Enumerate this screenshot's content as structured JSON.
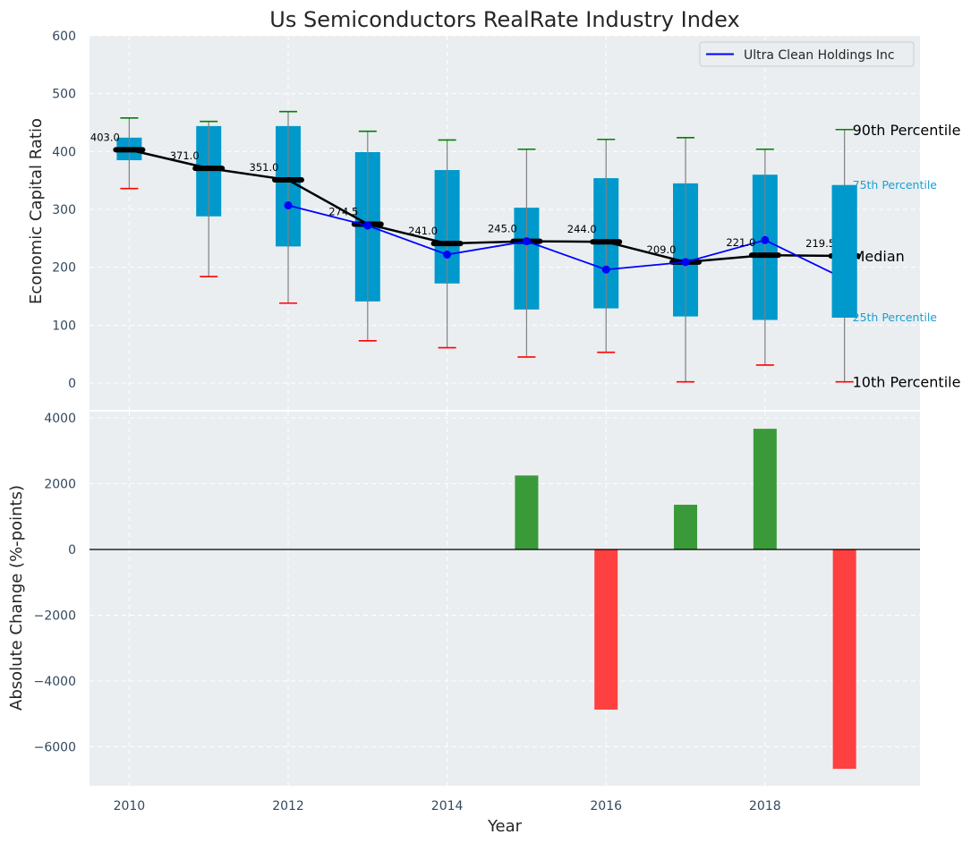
{
  "chart_data": [
    {
      "type": "box",
      "title": "Us Semiconductors RealRate Industry Index",
      "xlabel": "",
      "ylabel": "Economic Capital Ratio",
      "ylim": [
        -50,
        600
      ],
      "yticks": [
        0,
        100,
        200,
        300,
        400,
        500,
        600
      ],
      "grid": true,
      "x": [
        2010,
        2011,
        2012,
        2013,
        2014,
        2015,
        2016,
        2017,
        2018,
        2019
      ],
      "p10": [
        336,
        184,
        138,
        73,
        61,
        45,
        53,
        2,
        31,
        2
      ],
      "p25": [
        385,
        288,
        236,
        141,
        172,
        127,
        129,
        115,
        109,
        113
      ],
      "median": [
        403.0,
        371.0,
        351.0,
        274.5,
        241.0,
        245.0,
        244.0,
        209.0,
        221.0,
        219.5
      ],
      "median_labels": [
        "403.0",
        "371.0",
        "351.0",
        "274.5",
        "241.0",
        "245.0",
        "244.0",
        "209.0",
        "221.0",
        "219.5"
      ],
      "p75": [
        424,
        444,
        444,
        399,
        368,
        303,
        354,
        345,
        360,
        342
      ],
      "p90": [
        458,
        452,
        469,
        435,
        420,
        404,
        421,
        424,
        404,
        438
      ],
      "series": [
        {
          "name": "Ultra Clean Holdings Inc",
          "color": "#0000ff",
          "x": [
            2012,
            2013,
            2014,
            2015,
            2016,
            2017,
            2018,
            2019
          ],
          "values": [
            307,
            272,
            222,
            245,
            196,
            209,
            247,
            180
          ]
        }
      ],
      "legend": {
        "entries": [
          "Ultra Clean Holdings Inc"
        ],
        "placement": "top-right"
      },
      "annotations": {
        "p90": "90th Percentile",
        "p75": "75th Percentile",
        "median": "Median",
        "p25": "25th Percentile",
        "p10": "10th Percentile"
      },
      "colors": {
        "box": "#0099cc",
        "median": "#000000",
        "p90_cap": "#008000",
        "p10_cap": "#ff0000",
        "whisker": "#808080",
        "background": "#eaeef0"
      }
    },
    {
      "type": "bar",
      "title": "",
      "xlabel": "Year",
      "ylabel": "Absolute Change (%-points)",
      "ylim": [
        -7200,
        4400
      ],
      "yticks": [
        -6000,
        -4000,
        -2000,
        0,
        2000,
        4000
      ],
      "xticks": [
        2010,
        2012,
        2014,
        2016,
        2018
      ],
      "xlim": [
        2009.5,
        2019.95
      ],
      "grid": true,
      "x": [
        2015,
        2016,
        2017,
        2018,
        2019
      ],
      "values": [
        2250,
        -4870,
        1360,
        3670,
        -6670
      ],
      "colors": {
        "positive": "#3a9a3a",
        "negative": "#ff4040"
      }
    }
  ]
}
